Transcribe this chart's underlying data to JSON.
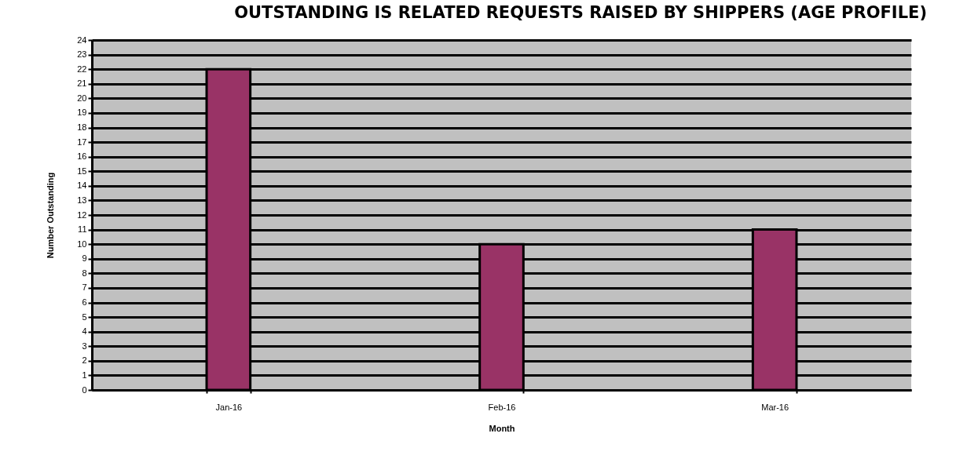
{
  "chart_data": {
    "type": "bar",
    "title": "OUTSTANDING IS RELATED REQUESTS RAISED BY SHIPPERS (AGE PROFILE)",
    "xlabel": "Month",
    "ylabel": "Number  Outstanding",
    "categories": [
      "Jan-16",
      "Feb-16",
      "Mar-16"
    ],
    "values": [
      22,
      10,
      11
    ],
    "color": "#993366",
    "ylim": [
      0,
      24
    ],
    "yticks": [
      0,
      1,
      2,
      3,
      4,
      5,
      6,
      7,
      8,
      9,
      10,
      11,
      12,
      13,
      14,
      15,
      16,
      17,
      18,
      19,
      20,
      21,
      22,
      23,
      24
    ],
    "grid": "y"
  }
}
